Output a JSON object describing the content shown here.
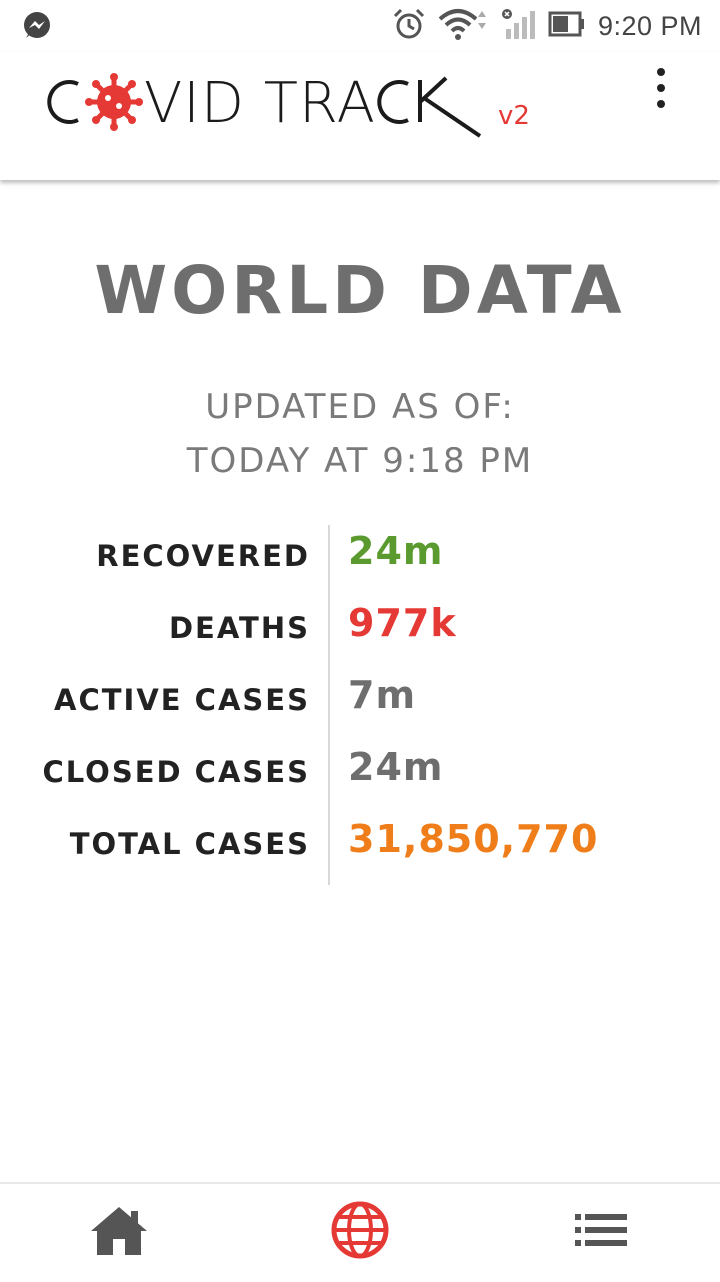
{
  "status_bar": {
    "time": "9:20 PM",
    "left_icons": [
      "messenger-icon"
    ],
    "right_icons": [
      "alarm-icon",
      "wifi-icon",
      "signal-icon",
      "battery-icon"
    ]
  },
  "app_bar": {
    "logo_text": "COVID TRACK",
    "logo_version": "v2",
    "menu_icon": "more-vert-icon",
    "colors": {
      "virus": "#e53935",
      "version": "#e53935"
    }
  },
  "main": {
    "title": "WORLD DATA",
    "updated_line1": "UPDATED AS OF:",
    "updated_line2": "TODAY AT 9:18 PM",
    "stats": [
      {
        "label": "RECOVERED",
        "value": "24m",
        "color": "#5a9a2e"
      },
      {
        "label": "DEATHS",
        "value": "977k",
        "color": "#e53935"
      },
      {
        "label": "ACTIVE CASES",
        "value": "7m",
        "color": "#6e6e6e"
      },
      {
        "label": "CLOSED CASES",
        "value": "24m",
        "color": "#6e6e6e"
      },
      {
        "label": "TOTAL CASES",
        "value": "31,850,770",
        "color": "#ef7d1a"
      }
    ]
  },
  "bottom_nav": {
    "items": [
      {
        "icon": "home-icon",
        "active": false
      },
      {
        "icon": "globe-icon",
        "active": true
      },
      {
        "icon": "list-icon",
        "active": false
      }
    ],
    "colors": {
      "active": "#e53935",
      "inactive": "#555555"
    }
  }
}
